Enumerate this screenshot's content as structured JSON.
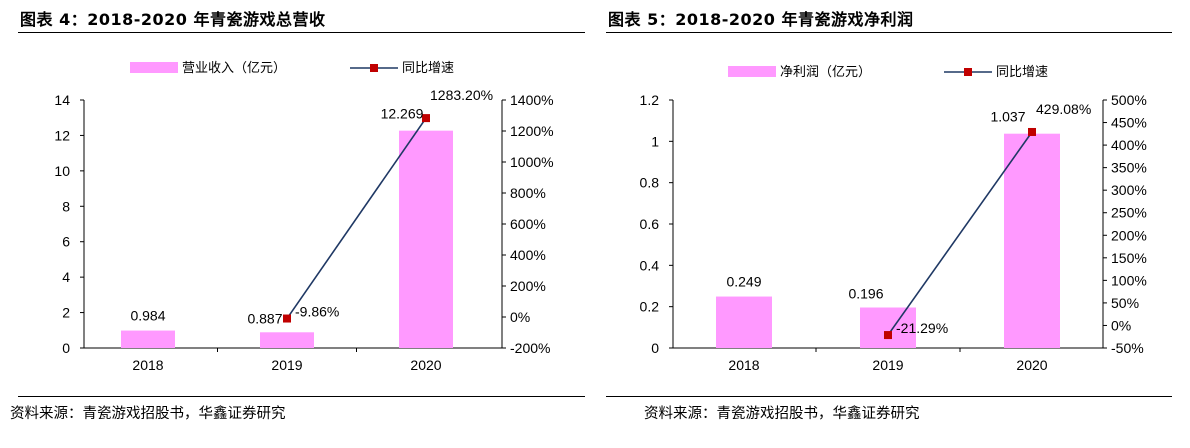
{
  "charts": {
    "revenue": {
      "title": "图表 4：2018-2020 年青瓷游戏总营收"
    },
    "profit": {
      "title": "图表 5：2018-2020 年青瓷游戏净利润"
    }
  },
  "sources": {
    "left": "资料来源：青瓷游戏招股书，华鑫证券研究",
    "right": "资料来源：青瓷游戏招股书，华鑫证券研究"
  },
  "colors": {
    "bar": "#FF99FF",
    "line": "#1F3864",
    "marker": "#C00000"
  },
  "chart_data": [
    {
      "type": "bar",
      "title": "图表 4：2018-2020 年青瓷游戏总营收",
      "categories": [
        "2018",
        "2019",
        "2020"
      ],
      "series": [
        {
          "name": "营业收入（亿元）",
          "type": "bar",
          "axis": "left",
          "values": [
            0.984,
            0.887,
            12.269
          ],
          "labels": [
            "0.984",
            "0.887",
            "12.269"
          ]
        },
        {
          "name": "同比增速",
          "type": "line",
          "axis": "right",
          "values": [
            null,
            -9.86,
            1283.2
          ],
          "labels": [
            null,
            "-9.86%",
            "1283.20%"
          ]
        }
      ],
      "ylim": [
        0,
        14
      ],
      "yticks": [
        "0",
        "2",
        "4",
        "6",
        "8",
        "10",
        "12",
        "14"
      ],
      "y2lim": [
        -200,
        1400
      ],
      "y2ticks": [
        "-200%",
        "0%",
        "200%",
        "400%",
        "600%",
        "800%",
        "1000%",
        "1200%",
        "1400%"
      ],
      "legend": "top",
      "grid": false
    },
    {
      "type": "bar",
      "title": "图表 5：2018-2020 年青瓷游戏净利润",
      "categories": [
        "2018",
        "2019",
        "2020"
      ],
      "series": [
        {
          "name": "净利润（亿元）",
          "type": "bar",
          "axis": "left",
          "values": [
            0.249,
            0.196,
            1.037
          ],
          "labels": [
            "0.249",
            "0.196",
            "1.037"
          ]
        },
        {
          "name": "同比增速",
          "type": "line",
          "axis": "right",
          "values": [
            null,
            -21.29,
            429.08
          ],
          "labels": [
            null,
            "-21.29%",
            "429.08%"
          ]
        }
      ],
      "ylim": [
        0,
        1.2
      ],
      "yticks": [
        "0",
        "0.2",
        "0.4",
        "0.6",
        "0.8",
        "1",
        "1.2"
      ],
      "y2lim": [
        -50,
        500
      ],
      "y2ticks": [
        "-50%",
        "0%",
        "50%",
        "100%",
        "150%",
        "200%",
        "250%",
        "300%",
        "350%",
        "400%",
        "450%",
        "500%"
      ],
      "legend": "top",
      "grid": false
    }
  ]
}
